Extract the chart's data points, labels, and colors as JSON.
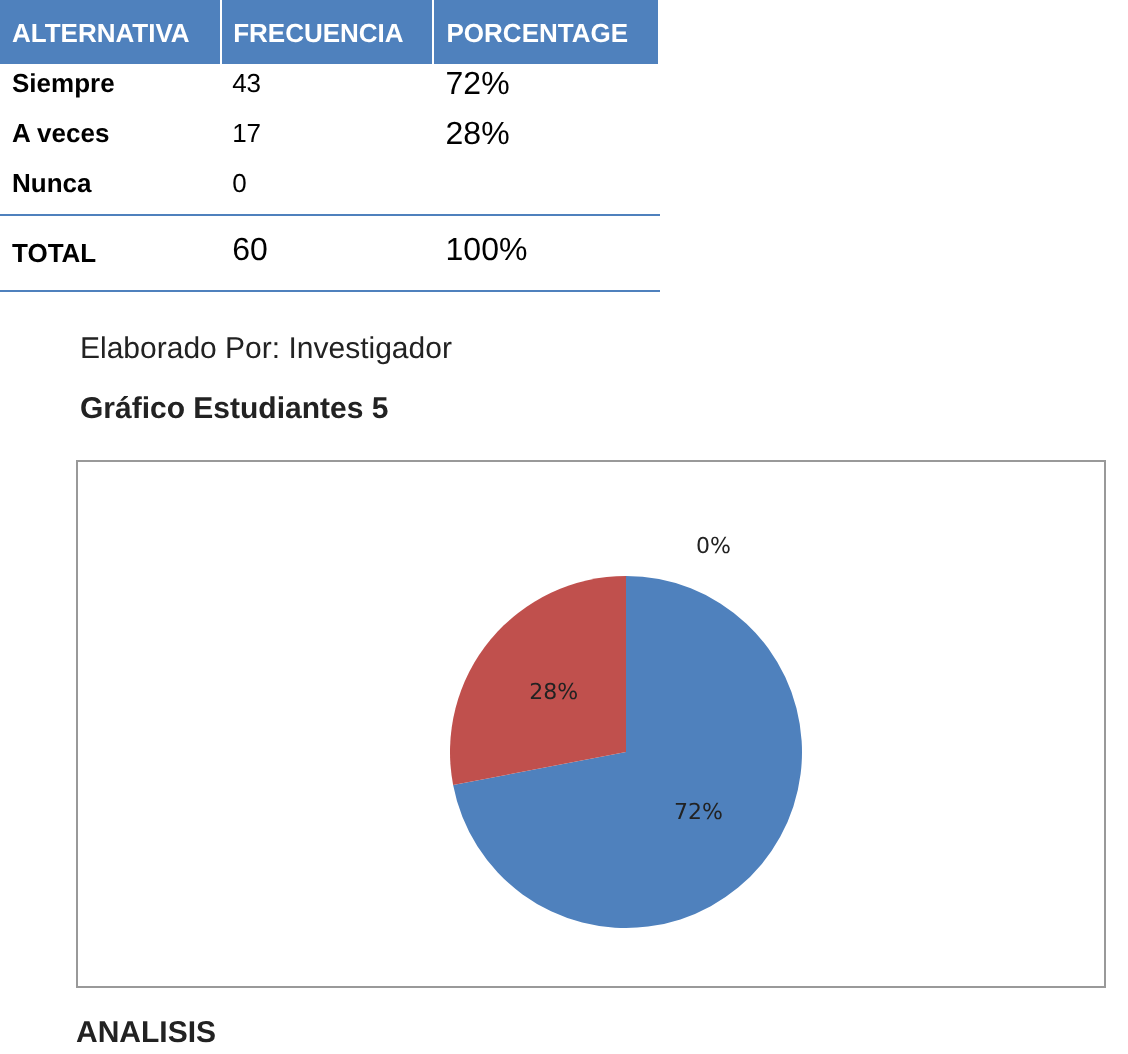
{
  "chart_data": [
    {
      "type": "other",
      "xlabel": "ALTERNATIVA",
      "categories": [
        "Siempre",
        "A veces",
        "Nunca"
      ],
      "series": [
        {
          "name": "FRECUENCIA",
          "values": [
            43,
            17,
            0
          ]
        },
        {
          "name": "PORCENTAGE",
          "values": [
            72,
            28,
            null
          ],
          "value_labels": [
            "72%",
            "28%",
            null
          ]
        }
      ],
      "totals": [
        "60",
        "100%"
      ],
      "data_labels": true,
      "annotations": [
        "TOTAL",
        "Elaborado Por: Investigador"
      ]
    },
    {
      "type": "pie",
      "title": "Gráfico Estudiantes 5",
      "categories": [
        null,
        null,
        null
      ],
      "values": [
        72,
        28,
        0
      ],
      "colors": [
        "#4f81bd",
        "#c0504d",
        "#9bbb59"
      ],
      "value_labels": [
        "72%",
        "28%",
        "0%"
      ],
      "annotations": [
        "ANALISIS"
      ]
    }
  ]
}
